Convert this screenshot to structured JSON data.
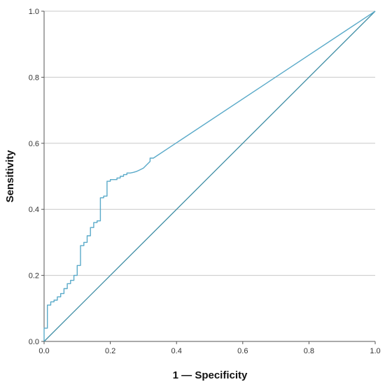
{
  "chart_data": {
    "type": "line",
    "title": "",
    "xlabel": "1 — Specificity",
    "ylabel": "Sensitivity",
    "xlim": [
      0,
      1
    ],
    "ylim": [
      0,
      1
    ],
    "xticks": [
      "0.0",
      "0.2",
      "0.4",
      "0.6",
      "0.8",
      "1.0"
    ],
    "yticks": [
      "0.0",
      "0.2",
      "0.4",
      "0.6",
      "0.8",
      "1.0"
    ],
    "grid": "horizontal",
    "legend": "none",
    "colors": {
      "roc": "#5aaac9",
      "reference": "#3f8ea5",
      "grid": "#c8c8c8",
      "axis": "#555555"
    },
    "series": [
      {
        "x": [
          0.0,
          0.0,
          0.01,
          0.01,
          0.02,
          0.02,
          0.03,
          0.03,
          0.04,
          0.04,
          0.05,
          0.05,
          0.06,
          0.06,
          0.07,
          0.07,
          0.08,
          0.08,
          0.09,
          0.09,
          0.1,
          0.1,
          0.11,
          0.11,
          0.12,
          0.12,
          0.13,
          0.13,
          0.14,
          0.14,
          0.15,
          0.15,
          0.16,
          0.16,
          0.17,
          0.17,
          0.18,
          0.18,
          0.19,
          0.19,
          0.2,
          0.2,
          0.21,
          0.21,
          0.22,
          0.22,
          0.23,
          0.23,
          0.24,
          0.24,
          0.25,
          0.25,
          0.26,
          0.27,
          0.28,
          0.29,
          0.3,
          0.31,
          0.32,
          0.32,
          0.33,
          1.0
        ],
        "y": [
          0.0,
          0.04,
          0.04,
          0.11,
          0.11,
          0.12,
          0.12,
          0.125,
          0.125,
          0.135,
          0.135,
          0.145,
          0.145,
          0.16,
          0.16,
          0.175,
          0.175,
          0.185,
          0.185,
          0.2,
          0.2,
          0.23,
          0.23,
          0.29,
          0.29,
          0.3,
          0.3,
          0.32,
          0.32,
          0.345,
          0.345,
          0.36,
          0.36,
          0.365,
          0.365,
          0.435,
          0.435,
          0.44,
          0.44,
          0.485,
          0.485,
          0.49,
          0.49,
          0.49,
          0.49,
          0.495,
          0.495,
          0.5,
          0.5,
          0.505,
          0.505,
          0.51,
          0.51,
          0.512,
          0.515,
          0.52,
          0.525,
          0.535,
          0.545,
          0.555,
          0.555,
          1.0
        ]
      }
    ]
  }
}
